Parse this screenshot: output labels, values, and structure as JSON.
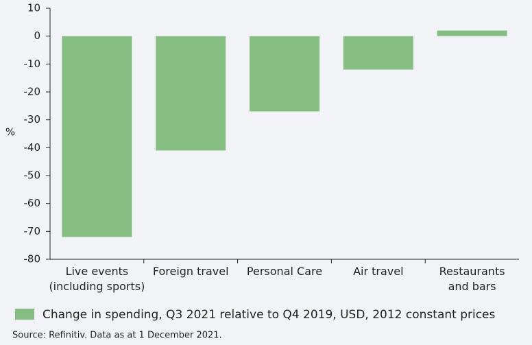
{
  "chart_data": {
    "type": "bar",
    "y_label": "%",
    "categories": [
      "Live events\n(including sports)",
      "Foreign travel",
      "Personal Care",
      "Air travel",
      "Restaurants\nand bars"
    ],
    "series": [
      {
        "name": "Change in spending, Q3 2021 relative to Q4 2019, USD, 2012 constant prices",
        "color": "#85bd82",
        "values": [
          -72,
          -41,
          -27,
          -12,
          2
        ]
      }
    ],
    "ylim": [
      -80,
      10
    ],
    "yticks": [
      10,
      0,
      -10,
      -20,
      -30,
      -40,
      -50,
      -60,
      -70,
      -80
    ],
    "grid": false,
    "source": "Source: Refinitiv. Data as at 1 December 2021."
  }
}
